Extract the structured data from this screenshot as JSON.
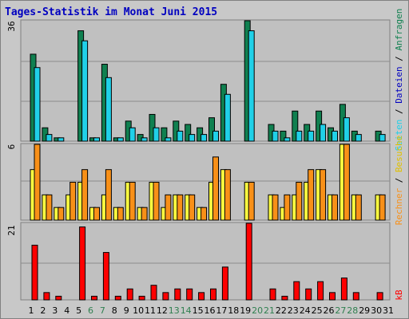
{
  "title": "Tages-Statistik im Monat Juni 2015",
  "colors": {
    "background": "#c8c8c8",
    "plot_background": "#c0c0c0",
    "gridline": "#8c8c8c",
    "title": "#0000c0",
    "hits": "#108050",
    "files": "#20d0e8",
    "pages": "#ffff40",
    "visits": "#f89018",
    "kb": "#ff0000",
    "weekday_label": "#000000",
    "weekend_label": "#308050"
  },
  "chart_data": [
    {
      "type": "bar",
      "ymax_label": "36",
      "ylim": [
        0,
        36
      ],
      "legend": [
        "Anfragen",
        "Dateien",
        "Seiten"
      ],
      "categories": [
        "1",
        "2",
        "3",
        "4",
        "5",
        "6",
        "7",
        "8",
        "9",
        "10",
        "11",
        "12",
        "13",
        "14",
        "15",
        "16",
        "17",
        "18",
        "19",
        "20",
        "21",
        "22",
        "23",
        "24",
        "25",
        "26",
        "27",
        "28",
        "29",
        "30",
        "31"
      ],
      "series": [
        {
          "name": "Anfragen",
          "color": "#108050",
          "values": [
            26,
            4,
            1,
            0,
            33,
            1,
            23,
            1,
            6,
            2,
            8,
            4,
            6,
            5,
            4,
            7,
            17,
            0,
            36,
            0,
            5,
            3,
            9,
            5,
            9,
            4,
            11,
            3,
            0,
            3,
            0
          ]
        },
        {
          "name": "Dateien",
          "color": "#20d0e8",
          "values": [
            22,
            2,
            1,
            0,
            30,
            1,
            19,
            1,
            4,
            1,
            4,
            1,
            3,
            2,
            2,
            3,
            14,
            0,
            33,
            0,
            3,
            1,
            3,
            3,
            5,
            3,
            7,
            2,
            0,
            2,
            0
          ]
        }
      ]
    },
    {
      "type": "bar",
      "ymax_label": "6",
      "ylim": [
        0,
        6
      ],
      "legend": [
        "Seiten",
        "Besuche",
        "Rechner"
      ],
      "categories": [
        "1",
        "2",
        "3",
        "4",
        "5",
        "6",
        "7",
        "8",
        "9",
        "10",
        "11",
        "12",
        "13",
        "14",
        "15",
        "16",
        "17",
        "18",
        "19",
        "20",
        "21",
        "22",
        "23",
        "24",
        "25",
        "26",
        "27",
        "28",
        "29",
        "30",
        "31"
      ],
      "series": [
        {
          "name": "Seiten",
          "color": "#ffff40",
          "values": [
            4,
            2,
            1,
            2,
            3,
            1,
            2,
            1,
            3,
            1,
            3,
            1,
            2,
            2,
            1,
            3,
            4,
            0,
            3,
            0,
            2,
            1,
            2,
            3,
            4,
            2,
            6,
            2,
            0,
            2,
            0
          ]
        },
        {
          "name": "Besuche",
          "color": "#f89018",
          "values": [
            6,
            2,
            1,
            3,
            4,
            1,
            4,
            1,
            3,
            1,
            3,
            2,
            2,
            2,
            1,
            5,
            4,
            0,
            3,
            0,
            2,
            2,
            3,
            4,
            4,
            2,
            6,
            2,
            0,
            2,
            0
          ]
        }
      ]
    },
    {
      "type": "bar",
      "ymax_label": "21",
      "ylim": [
        0,
        21
      ],
      "legend": [
        "kB"
      ],
      "categories": [
        "1",
        "2",
        "3",
        "4",
        "5",
        "6",
        "7",
        "8",
        "9",
        "10",
        "11",
        "12",
        "13",
        "14",
        "15",
        "16",
        "17",
        "18",
        "19",
        "20",
        "21",
        "22",
        "23",
        "24",
        "25",
        "26",
        "27",
        "28",
        "29",
        "30",
        "31"
      ],
      "series": [
        {
          "name": "kB",
          "color": "#ff0000",
          "values": [
            15,
            2,
            1,
            0,
            20,
            1,
            13,
            1,
            3,
            1,
            4,
            2,
            3,
            3,
            2,
            3,
            9,
            0,
            21,
            0,
            3,
            1,
            5,
            3,
            5,
            2,
            6,
            2,
            0,
            2,
            0
          ]
        }
      ]
    }
  ],
  "weekend_days": [
    "6",
    "7",
    "13",
    "14",
    "20",
    "21",
    "27",
    "28"
  ],
  "legends": {
    "top": [
      "Anfragen",
      "Dateien",
      "Seiten"
    ],
    "middle": [
      "Besuche",
      "Rechner"
    ],
    "bottom": [
      "kB"
    ]
  },
  "legend_text": {
    "top_files": "Dateien",
    "top_pages": "Seiten",
    "middle_visits": "Besuche",
    "middle_hosts": "Rechner",
    "bottom_kb": "kB"
  }
}
